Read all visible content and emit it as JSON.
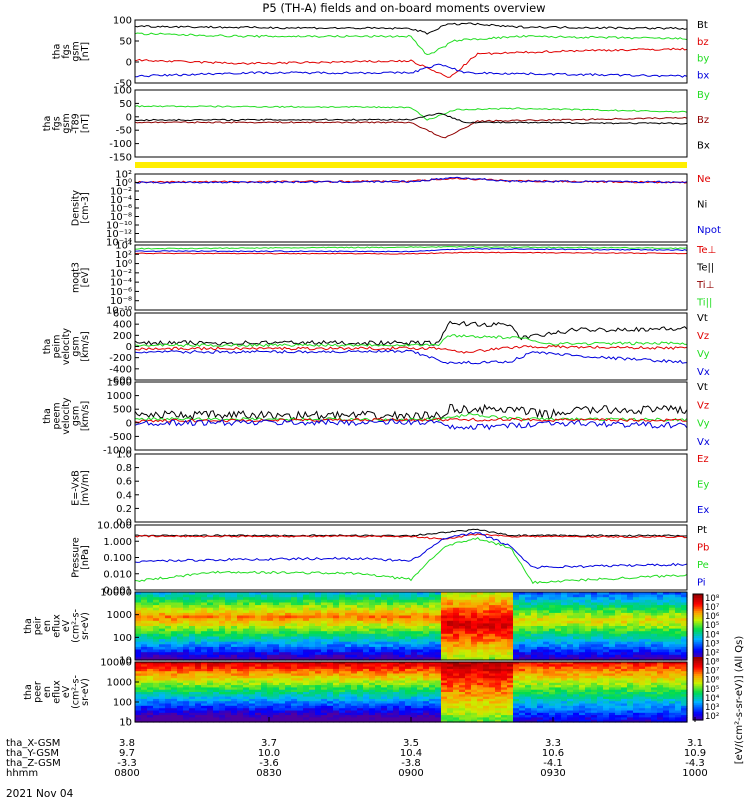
{
  "title": "P5 (TH-A) fields and on-board moments overview",
  "date": "2021 Nov 04",
  "colors": {
    "black": "#000000",
    "red": "#e00000",
    "green": "#22dd22",
    "blue": "#0000dd",
    "darkred": "#900000",
    "yellow": "#ffee00"
  },
  "panels": [
    {
      "ylabel": [
        "tha",
        "fgs",
        "gsm",
        "[nT]"
      ],
      "ticks": [
        "100",
        "50",
        "0",
        "-50"
      ],
      "legend": [
        [
          "Bt",
          "#000000"
        ],
        [
          "bz",
          "#e00000"
        ],
        [
          "by",
          "#22dd22"
        ],
        [
          "bx",
          "#0000dd"
        ]
      ]
    },
    {
      "ylabel": [
        "tha",
        "fgs",
        "gsm",
        "-T89",
        "[nT]"
      ],
      "ticks": [
        "100",
        "50",
        "0",
        "-50",
        "-100",
        "-150"
      ],
      "legend": [
        [
          "By",
          "#22dd22"
        ],
        [
          "Bz",
          "#900000"
        ],
        [
          "Bx",
          "#000000"
        ]
      ]
    },
    {
      "ylabel": [
        "Density",
        "[cm-3]"
      ],
      "ticks": [
        "10²",
        "10⁰",
        "10⁻²",
        "10⁻⁴",
        "10⁻⁶",
        "10⁻⁸",
        "10⁻¹⁰",
        "10⁻¹²",
        "10⁻¹⁴"
      ],
      "legend": [
        [
          "Ne",
          "#e00000"
        ],
        [
          "Ni",
          "#000000"
        ],
        [
          "Npot",
          "#0000dd"
        ]
      ]
    },
    {
      "ylabel": [
        "moqt3",
        "[eV]"
      ],
      "ticks": [
        "10⁴",
        "10²",
        "10⁰",
        "10⁻²",
        "10⁻⁴",
        "10⁻⁶",
        "10⁻⁸",
        "10⁻¹⁰"
      ],
      "legend": [
        [
          "Te⊥",
          "#e00000"
        ],
        [
          "Te||",
          "#000000"
        ],
        [
          "Ti⊥",
          "#900000"
        ],
        [
          "Ti||",
          "#22dd22"
        ]
      ]
    },
    {
      "ylabel": [
        "tha",
        "peim",
        "velocity",
        "gsm",
        "[km/s]"
      ],
      "ticks": [
        "600",
        "400",
        "200",
        "0",
        "-200",
        "-400",
        "-600"
      ],
      "legend": [
        [
          "Vt",
          "#000000"
        ],
        [
          "Vz",
          "#e00000"
        ],
        [
          "Vy",
          "#22dd22"
        ],
        [
          "Vx",
          "#0000dd"
        ]
      ]
    },
    {
      "ylabel": [
        "tha",
        "peem",
        "velocity",
        "gsm",
        "[km/s]"
      ],
      "ticks": [
        "1500",
        "1000",
        "500",
        "0",
        "-500",
        "-1000"
      ],
      "legend": [
        [
          "Vt",
          "#000000"
        ],
        [
          "Vz",
          "#e00000"
        ],
        [
          "Vy",
          "#22dd22"
        ],
        [
          "Vx",
          "#0000dd"
        ]
      ]
    },
    {
      "ylabel": [
        "E=-VxB",
        "[mV/m]"
      ],
      "ticks": [
        "1.0",
        "0.8",
        "0.6",
        "0.4",
        "0.2",
        "0.0"
      ],
      "legend": [
        [
          "Ez",
          "#e00000"
        ],
        [
          "Ey",
          "#22dd22"
        ],
        [
          "Ex",
          "#0000dd"
        ]
      ]
    },
    {
      "ylabel": [
        "Pressure",
        "[nPa]"
      ],
      "ticks": [
        "10.000",
        "1.000",
        "0.100",
        "0.010",
        "0.001"
      ],
      "legend": [
        [
          "Pt",
          "#000000"
        ],
        [
          "Pb",
          "#e00000"
        ],
        [
          "Pe",
          "#22dd22"
        ],
        [
          "Pi",
          "#0000dd"
        ]
      ]
    },
    {
      "ylabel": [
        "tha",
        "peir",
        "en",
        "eflux",
        "eV",
        "(cm²-s-",
        "sr-eV)"
      ],
      "ticks": [
        "10000",
        "1000",
        "100",
        "10"
      ]
    },
    {
      "ylabel": [
        "tha",
        "peer",
        "en",
        "eflux",
        "eV",
        "(cm²-s-",
        "sr-eV)"
      ],
      "ticks": [
        "10000",
        "1000",
        "100",
        "10"
      ]
    }
  ],
  "colorbar": {
    "ticks": [
      "10⁸",
      "10⁷",
      "10⁶",
      "10⁵",
      "10⁴",
      "10³",
      "10²",
      "10⁸",
      "10⁷",
      "10⁶",
      "10⁵",
      "10⁴",
      "10³",
      "10²"
    ],
    "label": "[eV/(cm²-s-sr-eV)] (All Qs)"
  },
  "xaxis": {
    "row_labels": [
      "tha_X-GSM",
      "tha_Y-GSM",
      "tha_Z-GSM",
      "hhmm"
    ],
    "columns": [
      [
        "3.8",
        "9.7",
        "-3.3",
        "0800"
      ],
      [
        "3.7",
        "10.0",
        "-3.6",
        "0830"
      ],
      [
        "3.5",
        "10.4",
        "-3.8",
        "0900"
      ],
      [
        "3.3",
        "10.6",
        "-4.1",
        "0930"
      ],
      [
        "3.1",
        "10.9",
        "-4.3",
        "1000"
      ]
    ]
  },
  "chart_data": {
    "type": "line",
    "title": "P5 (TH-A) fields and on-board moments overview",
    "x": [
      "0800",
      "0830",
      "0900",
      "0930",
      "1000"
    ],
    "xlabel": "hhmm",
    "series": [
      {
        "name": "Bt",
        "values": [
          90,
          88,
          85,
          100,
          85
        ]
      },
      {
        "name": "bz",
        "values": [
          -5,
          -15,
          -20,
          15,
          25
        ]
      },
      {
        "name": "by",
        "values": [
          70,
          60,
          60,
          65,
          55
        ]
      },
      {
        "name": "bx",
        "values": [
          -55,
          -45,
          -45,
          -45,
          -55
        ]
      },
      {
        "name": "Vt (peim)",
        "values": [
          50,
          80,
          60,
          400,
          300
        ]
      },
      {
        "name": "Vx (peim)",
        "values": [
          -100,
          -80,
          -100,
          -300,
          -150
        ]
      },
      {
        "name": "Pt",
        "values": [
          2.5,
          2.5,
          2.5,
          5,
          2.5
        ]
      },
      {
        "name": "Pe",
        "values": [
          0.003,
          0.01,
          0.005,
          1.5,
          0.01
        ]
      },
      {
        "name": "Pi",
        "values": [
          0.05,
          0.1,
          0.07,
          3,
          0.1
        ]
      }
    ]
  }
}
